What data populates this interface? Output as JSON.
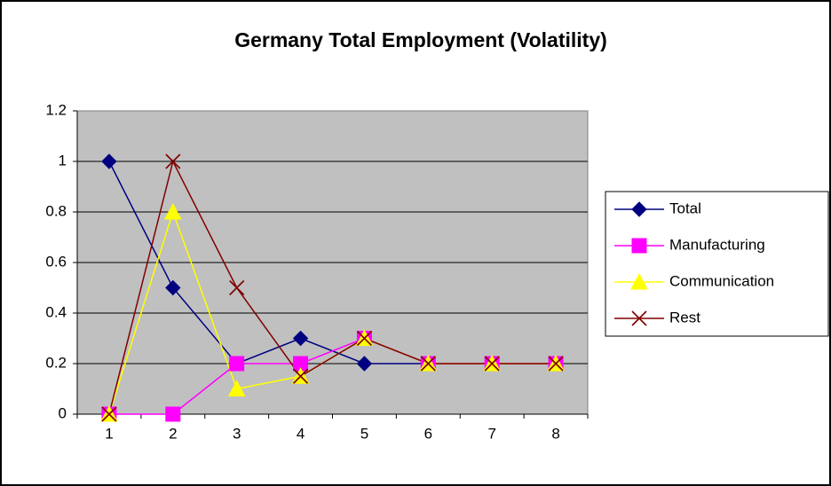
{
  "chart_data": {
    "type": "line",
    "title": "Germany Total Employment (Volatility)",
    "categories": [
      "1",
      "2",
      "3",
      "4",
      "5",
      "6",
      "7",
      "8"
    ],
    "series": [
      {
        "name": "Total",
        "color": "#000080",
        "marker": "diamond",
        "values": [
          1,
          0.5,
          0.2,
          0.3,
          0.2,
          0.2,
          0.2,
          0.2
        ]
      },
      {
        "name": "Manufacturing",
        "color": "#FF00FF",
        "marker": "square",
        "values": [
          0,
          0,
          0.2,
          0.2,
          0.3,
          0.2,
          0.2,
          0.2
        ]
      },
      {
        "name": "Communication",
        "color": "#FFFF00",
        "marker": "triangle",
        "values": [
          0,
          0.8,
          0.1,
          0.15,
          0.3,
          0.2,
          0.2,
          0.2
        ]
      },
      {
        "name": "Rest",
        "color": "#800000",
        "marker": "x",
        "values": [
          0,
          1,
          0.5,
          0.15,
          0.3,
          0.2,
          0.2,
          0.2
        ]
      }
    ],
    "ylim": [
      0,
      1.2
    ],
    "yticks": [
      0,
      0.2,
      0.4,
      0.6,
      0.8,
      1,
      1.2
    ],
    "grid": true,
    "legend": "right"
  }
}
